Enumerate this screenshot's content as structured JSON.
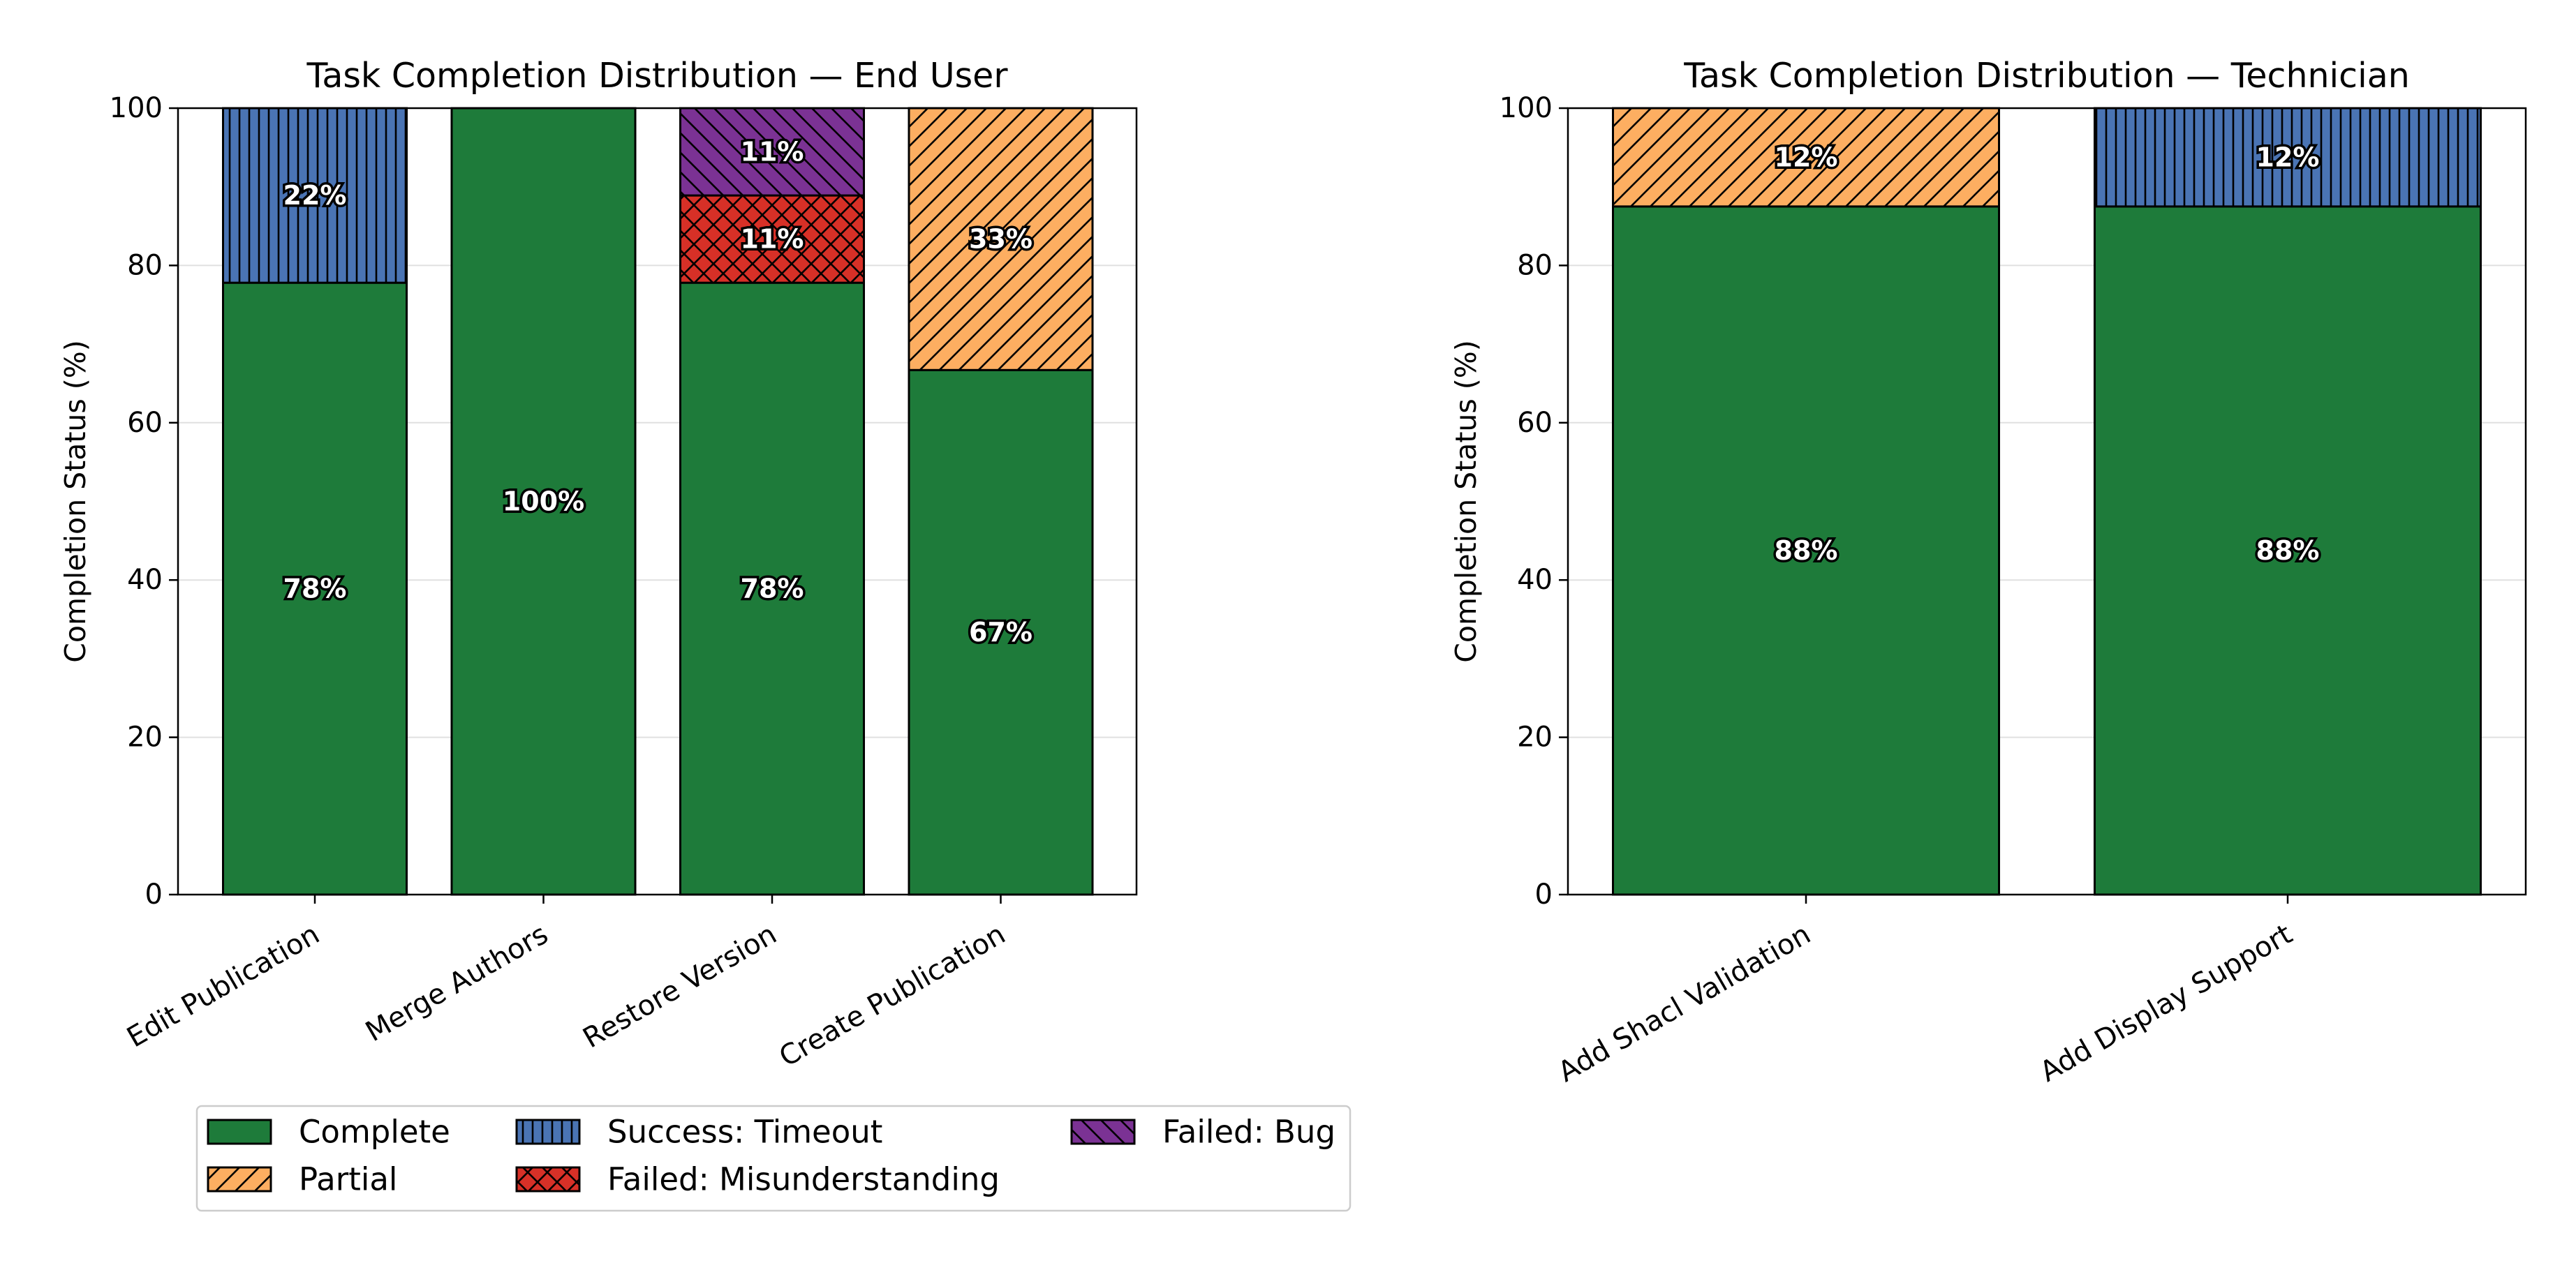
{
  "categories_colors": {
    "Complete": "#1e7b3a",
    "Partial": "#fdae61",
    "Success: Timeout": "#4a74b4",
    "Failed: Misunderstanding": "#d73027",
    "Failed: Bug": "#7b3294"
  },
  "legend": {
    "items": [
      {
        "label": "Complete",
        "color": "#1e7b3a",
        "hatch": "none"
      },
      {
        "label": "Partial",
        "color": "#fdae61",
        "hatch": "diag"
      },
      {
        "label": "Success: Timeout",
        "color": "#4a74b4",
        "hatch": "vert"
      },
      {
        "label": "Failed: Misunderstanding",
        "color": "#d73027",
        "hatch": "cross"
      },
      {
        "label": "Failed: Bug",
        "color": "#7b3294",
        "hatch": "diag-rev"
      }
    ]
  },
  "chart_data": [
    {
      "type": "bar",
      "stacked": true,
      "title": "Task Completion Distribution — End User",
      "xlabel": "",
      "ylabel": "Completion Status (%)",
      "ylim": [
        0,
        100
      ],
      "yticks": [
        0,
        20,
        40,
        60,
        80,
        100
      ],
      "grid": "y",
      "categories": [
        "Edit Publication",
        "Merge Authors",
        "Restore Version",
        "Create Publication"
      ],
      "series": [
        {
          "name": "Complete",
          "values": [
            77.8,
            100,
            77.8,
            66.7
          ],
          "labels": [
            "78%",
            "100%",
            "78%",
            "67%"
          ]
        },
        {
          "name": "Success: Timeout",
          "values": [
            22.2,
            0,
            0,
            0
          ],
          "labels": [
            "22%",
            "",
            "",
            ""
          ]
        },
        {
          "name": "Failed: Misunderstanding",
          "values": [
            0,
            0,
            11.1,
            0
          ],
          "labels": [
            "",
            "",
            "11%",
            ""
          ]
        },
        {
          "name": "Failed: Bug",
          "values": [
            0,
            0,
            11.1,
            0
          ],
          "labels": [
            "",
            "",
            "11%",
            ""
          ]
        },
        {
          "name": "Partial",
          "values": [
            0,
            0,
            0,
            33.3
          ],
          "labels": [
            "",
            "",
            "",
            "33%"
          ]
        }
      ]
    },
    {
      "type": "bar",
      "stacked": true,
      "title": "Task Completion Distribution — Technician",
      "xlabel": "",
      "ylabel": "Completion Status (%)",
      "ylim": [
        0,
        100
      ],
      "yticks": [
        0,
        20,
        40,
        60,
        80,
        100
      ],
      "grid": "y",
      "categories": [
        "Add Shacl Validation",
        "Add Display Support"
      ],
      "series": [
        {
          "name": "Complete",
          "values": [
            87.5,
            87.5
          ],
          "labels": [
            "88%",
            "88%"
          ]
        },
        {
          "name": "Partial",
          "values": [
            12.5,
            0
          ],
          "labels": [
            "12%",
            ""
          ]
        },
        {
          "name": "Success: Timeout",
          "values": [
            0,
            12.5
          ],
          "labels": [
            "",
            "12%"
          ]
        }
      ]
    }
  ]
}
